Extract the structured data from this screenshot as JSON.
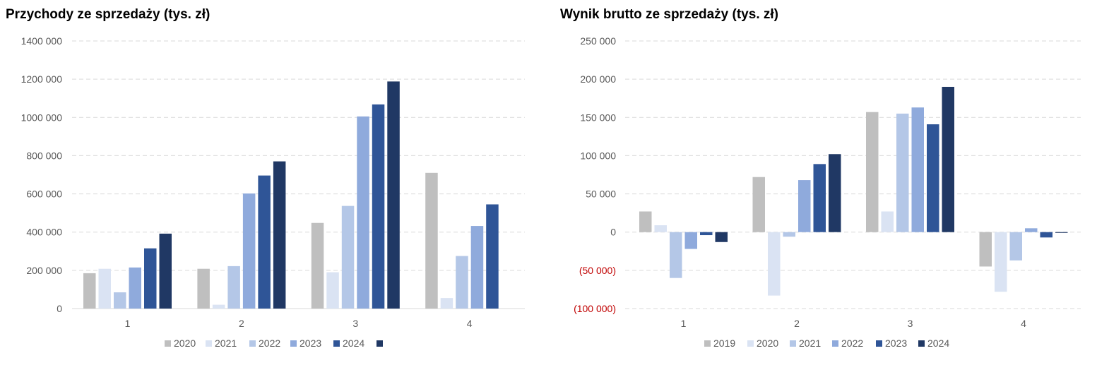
{
  "colors": [
    "#bfbfbf",
    "#dae3f3",
    "#b4c7e7",
    "#8faadc",
    "#2f5597",
    "#203864"
  ],
  "chart_data": [
    {
      "type": "bar",
      "title": "Przychody ze sprzedaży (tys. zł)",
      "categories": [
        "1",
        "2",
        "3",
        "4"
      ],
      "ylim": [
        0,
        1400000
      ],
      "yticks": [
        0,
        200000,
        400000,
        600000,
        800000,
        1000000,
        1200000,
        1400000
      ],
      "ytick_labels": [
        "0",
        "200 000",
        "400 000",
        "600 000",
        "800 000",
        "1000 000",
        "1200 000",
        "1400 000"
      ],
      "grid": true,
      "legend_position": "bottom",
      "series": [
        {
          "name": "2020",
          "values": [
            185000,
            208000,
            448000,
            710000
          ]
        },
        {
          "name": "2021",
          "values": [
            208000,
            20000,
            190000,
            55000
          ]
        },
        {
          "name": "2022",
          "values": [
            85000,
            222000,
            537000,
            275000
          ]
        },
        {
          "name": "2023",
          "values": [
            215000,
            602000,
            1005000,
            432000
          ]
        },
        {
          "name": "2024",
          "values": [
            315000,
            696000,
            1068000,
            545000
          ]
        },
        {
          "name": "",
          "values": [
            392000,
            770000,
            1188000,
            null
          ]
        }
      ]
    },
    {
      "type": "bar",
      "title": "Wynik brutto ze sprzedaży (tys. zł)",
      "categories": [
        "1",
        "2",
        "3",
        "4"
      ],
      "ylim": [
        -100000,
        250000
      ],
      "yticks": [
        -100000,
        -50000,
        0,
        50000,
        100000,
        150000,
        200000,
        250000
      ],
      "ytick_labels": [
        "(100 000)",
        "(50 000)",
        "0",
        "50 000",
        "100 000",
        "150 000",
        "200 000",
        "250 000"
      ],
      "grid": true,
      "legend_position": "bottom",
      "series": [
        {
          "name": "2019",
          "values": [
            27000,
            72000,
            157000,
            -45000
          ]
        },
        {
          "name": "2020",
          "values": [
            9000,
            -83000,
            27000,
            -78000
          ]
        },
        {
          "name": "2021",
          "values": [
            -60000,
            -6000,
            155000,
            -37000
          ]
        },
        {
          "name": "2022",
          "values": [
            -22000,
            68000,
            163000,
            5000
          ]
        },
        {
          "name": "2023",
          "values": [
            -4000,
            89000,
            141000,
            -7000
          ]
        },
        {
          "name": "2024",
          "values": [
            -13000,
            102000,
            190000,
            -1000
          ]
        }
      ]
    }
  ]
}
